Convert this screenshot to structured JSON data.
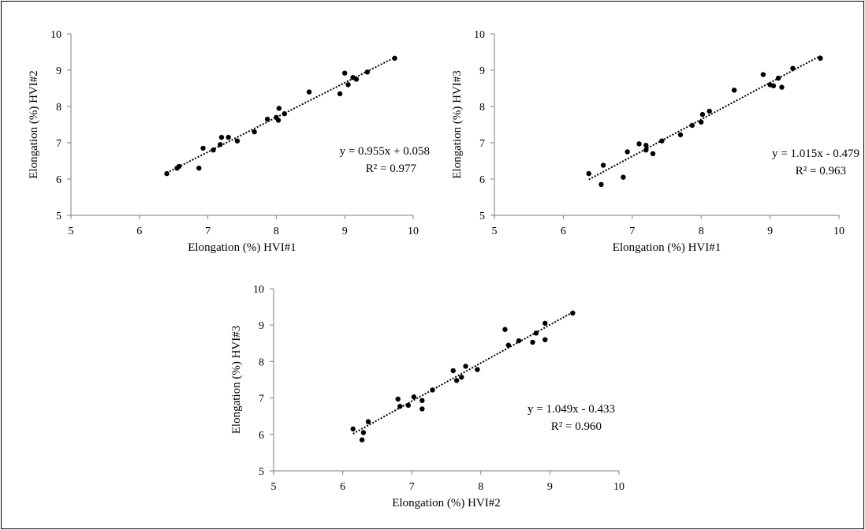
{
  "chart_data": [
    {
      "type": "scatter",
      "xlabel": "Elongation (%) HVI#1",
      "ylabel": "Elongation (%) HVI#2",
      "xlim": [
        5,
        10
      ],
      "ylim": [
        5,
        10
      ],
      "xticks": [
        "5",
        "6",
        "7",
        "8",
        "9",
        "10"
      ],
      "yticks": [
        "5",
        "6",
        "7",
        "8",
        "9",
        "10"
      ],
      "points": [
        [
          6.4,
          6.15
        ],
        [
          6.55,
          6.3
        ],
        [
          6.58,
          6.35
        ],
        [
          6.87,
          6.3
        ],
        [
          6.93,
          6.85
        ],
        [
          7.08,
          6.8
        ],
        [
          7.18,
          6.95
        ],
        [
          7.2,
          7.15
        ],
        [
          7.3,
          7.15
        ],
        [
          7.43,
          7.05
        ],
        [
          7.68,
          7.3
        ],
        [
          7.87,
          7.65
        ],
        [
          8.0,
          7.7
        ],
        [
          8.03,
          7.62
        ],
        [
          8.04,
          7.95
        ],
        [
          8.12,
          7.8
        ],
        [
          8.48,
          8.4
        ],
        [
          8.93,
          8.35
        ],
        [
          9.0,
          8.92
        ],
        [
          9.05,
          8.6
        ],
        [
          9.12,
          8.8
        ],
        [
          9.17,
          8.75
        ],
        [
          9.33,
          8.95
        ],
        [
          9.73,
          9.33
        ]
      ],
      "trendline": {
        "style": "dotted",
        "slope": 0.955,
        "intercept": 0.058,
        "x_range": [
          6.4,
          9.73
        ],
        "equation": "y = 0.955x + 0.058",
        "r2": "R² = 0.977"
      }
    },
    {
      "type": "scatter",
      "xlabel": "Elongation (%) HVI#1",
      "ylabel": "Elongation (%) HVI#3",
      "xlim": [
        5,
        10
      ],
      "ylim": [
        5,
        10
      ],
      "xticks": [
        "5",
        "6",
        "7",
        "8",
        "9",
        "10"
      ],
      "yticks": [
        "5",
        "6",
        "7",
        "8",
        "9",
        "10"
      ],
      "points": [
        [
          6.37,
          6.15
        ],
        [
          6.55,
          5.85
        ],
        [
          6.58,
          6.38
        ],
        [
          6.87,
          6.05
        ],
        [
          6.93,
          6.75
        ],
        [
          7.1,
          6.97
        ],
        [
          7.2,
          6.93
        ],
        [
          7.2,
          6.8
        ],
        [
          7.3,
          6.7
        ],
        [
          7.43,
          7.05
        ],
        [
          7.7,
          7.22
        ],
        [
          7.87,
          7.48
        ],
        [
          8.0,
          7.57
        ],
        [
          8.02,
          7.78
        ],
        [
          8.12,
          7.87
        ],
        [
          8.48,
          8.45
        ],
        [
          8.9,
          8.88
        ],
        [
          9.0,
          8.6
        ],
        [
          9.05,
          8.57
        ],
        [
          9.12,
          8.78
        ],
        [
          9.17,
          8.53
        ],
        [
          9.33,
          9.05
        ],
        [
          9.73,
          9.33
        ]
      ],
      "trendline": {
        "style": "dotted",
        "slope": 1.015,
        "intercept": -0.479,
        "x_range": [
          6.37,
          9.73
        ],
        "equation": "y = 1.015x - 0.479",
        "r2": "R² = 0.963"
      }
    },
    {
      "type": "scatter",
      "xlabel": "Elongation (%) HVI#2",
      "ylabel": "Elongation (%) HVI#3",
      "xlim": [
        5,
        10
      ],
      "ylim": [
        5,
        10
      ],
      "xticks": [
        "5",
        "6",
        "7",
        "8",
        "9",
        "10"
      ],
      "yticks": [
        "5",
        "6",
        "7",
        "8",
        "9",
        "10"
      ],
      "points": [
        [
          6.15,
          6.15
        ],
        [
          6.28,
          5.85
        ],
        [
          6.3,
          6.05
        ],
        [
          6.37,
          6.35
        ],
        [
          6.8,
          6.97
        ],
        [
          6.83,
          6.77
        ],
        [
          6.95,
          6.8
        ],
        [
          7.03,
          7.03
        ],
        [
          7.15,
          6.93
        ],
        [
          7.15,
          6.7
        ],
        [
          7.3,
          7.22
        ],
        [
          7.6,
          7.75
        ],
        [
          7.65,
          7.48
        ],
        [
          7.72,
          7.57
        ],
        [
          7.78,
          7.87
        ],
        [
          7.95,
          7.78
        ],
        [
          8.35,
          8.88
        ],
        [
          8.4,
          8.45
        ],
        [
          8.55,
          8.57
        ],
        [
          8.75,
          8.53
        ],
        [
          8.8,
          8.78
        ],
        [
          8.93,
          9.05
        ],
        [
          8.93,
          8.6
        ],
        [
          9.33,
          9.33
        ]
      ],
      "trendline": {
        "style": "dotted",
        "slope": 1.049,
        "intercept": -0.433,
        "x_range": [
          6.15,
          9.33
        ],
        "equation": "y = 1.049x - 0.433",
        "r2": "R² = 0.960"
      }
    }
  ]
}
